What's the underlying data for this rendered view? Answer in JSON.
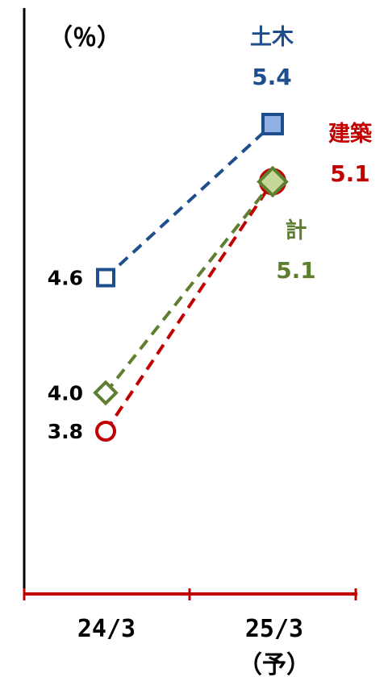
{
  "chart_data": {
    "type": "line",
    "unit_label": "（％）",
    "categories": [
      "24/3",
      "25/3"
    ],
    "category_notes": [
      "",
      "（予）"
    ],
    "series": [
      {
        "name": "土木",
        "values": [
          4.6,
          5.4
        ],
        "value_labels": [
          "4.6",
          "5.4"
        ],
        "color": "#1f4e8c",
        "fill": "#8fb1e3",
        "marker": "square",
        "line_style": "dashed"
      },
      {
        "name": "建築",
        "values": [
          3.8,
          5.1
        ],
        "value_labels": [
          "3.8",
          "5.1"
        ],
        "color": "#c00000",
        "fill": "#c0504d",
        "marker": "circle",
        "line_style": "dashed"
      },
      {
        "name": "計",
        "values": [
          4.0,
          5.1
        ],
        "value_labels": [
          "4.0",
          "5.1"
        ],
        "color": "#5e7f2f",
        "fill": "#c5d89a",
        "marker": "diamond",
        "line_style": "dashed"
      }
    ],
    "axis_color": "#c00000",
    "ylim": [
      3.0,
      5.6
    ],
    "grid": false,
    "legend": "inline labels"
  }
}
